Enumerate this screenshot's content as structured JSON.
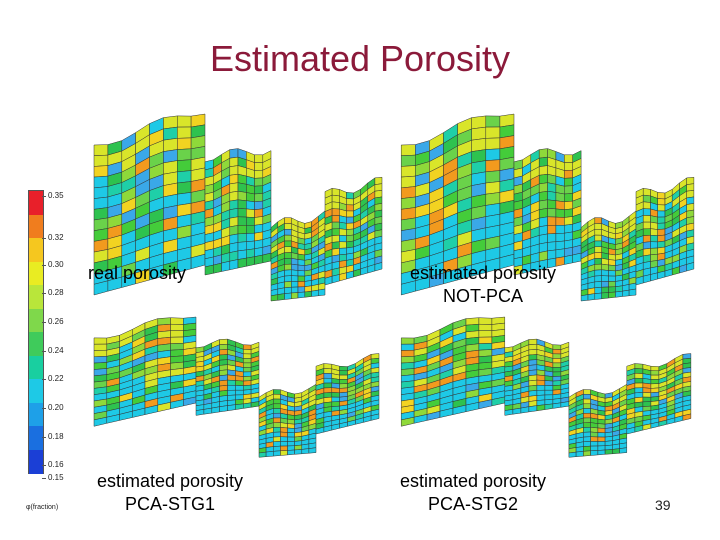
{
  "slide": {
    "title": "Estimated Porosity",
    "page_number": "39"
  },
  "colorbar": {
    "ticks": [
      "0.35",
      "0.32",
      "0.30",
      "0.28",
      "0.26",
      "0.24",
      "0.22",
      "0.20",
      "0.18",
      "0.16",
      "0.15"
    ],
    "unit_label": "φ(fraction)",
    "colors": [
      "#e8202a",
      "#f07d1e",
      "#f5c71f",
      "#e9ec22",
      "#b9e63a",
      "#7fd84b",
      "#3fcb5b",
      "#19cfa0",
      "#1ec9e6",
      "#1ea0e8",
      "#1a6fe0",
      "#1b3fd6"
    ]
  },
  "panels": [
    {
      "caption_line1": "real porosity",
      "caption_line2": ""
    },
    {
      "caption_line1": "estimated porosity",
      "caption_line2": "NOT-PCA"
    },
    {
      "caption_line1": "estimated porosity",
      "caption_line2": "PCA-STG1"
    },
    {
      "caption_line1": "estimated porosity",
      "caption_line2": "PCA-STG2"
    }
  ]
}
